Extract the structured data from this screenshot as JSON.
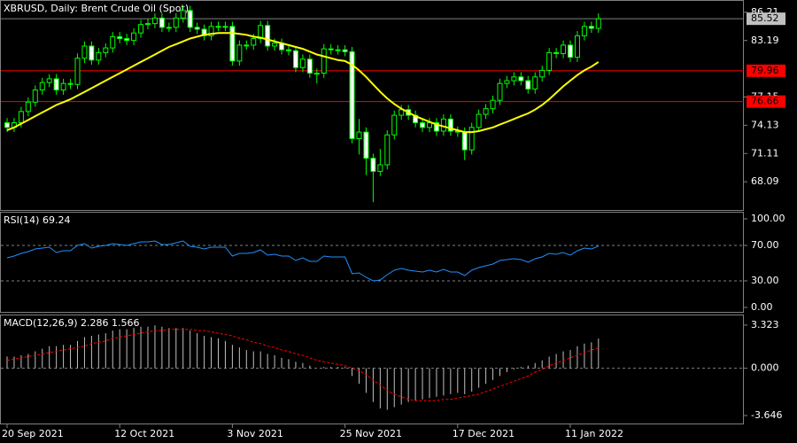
{
  "chart_data": [
    {
      "type": "candlestick",
      "title": "XBRUSD, Daily:  Brent Crude Oil (Spot)",
      "categories": [
        "20 Sep 2021",
        null,
        null,
        null,
        null,
        null,
        null,
        null,
        null,
        null,
        null,
        null,
        null,
        null,
        null,
        null,
        "12 Oct 2021",
        null,
        null,
        null,
        null,
        null,
        null,
        null,
        null,
        null,
        null,
        null,
        null,
        null,
        null,
        null,
        "3 Nov 2021",
        null,
        null,
        null,
        null,
        null,
        null,
        null,
        null,
        null,
        null,
        null,
        null,
        null,
        null,
        null,
        "25 Nov 2021",
        null,
        null,
        null,
        null,
        null,
        null,
        null,
        null,
        null,
        null,
        null,
        null,
        null,
        null,
        null,
        "17 Dec 2021",
        null,
        null,
        null,
        null,
        null,
        null,
        null,
        null,
        null,
        null,
        null,
        null,
        null,
        null,
        null,
        "11 Jan 2022",
        null,
        null,
        null,
        null
      ],
      "open": [
        74.4,
        73.9,
        74.4,
        75.6,
        76.6,
        77.9,
        78.7,
        79.1,
        77.9,
        78.6,
        78.5,
        81.3,
        82.6,
        81.1,
        81.9,
        82.4,
        83.6,
        83.4,
        83.2,
        84.0,
        84.9,
        85.0,
        85.6,
        84.6,
        84.6,
        85.6,
        86.4,
        84.6,
        84.4,
        83.7,
        84.7,
        84.7,
        84.7,
        81.0,
        82.7,
        82.7,
        83.4,
        84.8,
        82.6,
        82.9,
        82.2,
        82.1,
        80.3,
        81.2,
        79.7,
        79.7,
        82.3,
        82.2,
        82.2,
        82.0,
        72.7,
        73.4,
        70.6,
        69.2,
        69.9,
        73.1,
        75.2,
        75.8,
        75.2,
        74.4,
        73.9,
        74.4,
        73.5,
        74.8,
        73.5,
        73.4,
        71.5,
        73.9,
        75.3,
        75.9,
        76.8,
        78.6,
        78.9,
        79.3,
        78.9,
        78.0,
        79.3,
        80.0,
        81.9,
        81.8,
        82.7,
        81.4,
        83.7,
        84.7,
        84.5
      ],
      "high": [
        74.9,
        74.9,
        76.1,
        77.1,
        78.4,
        79.2,
        79.6,
        79.6,
        79.1,
        79.1,
        81.8,
        83.1,
        83.1,
        82.4,
        82.9,
        84.1,
        84.1,
        83.9,
        84.5,
        85.4,
        85.5,
        86.1,
        86.1,
        85.1,
        86.1,
        86.9,
        86.9,
        85.1,
        84.9,
        85.2,
        85.2,
        85.2,
        85.2,
        83.2,
        83.2,
        83.9,
        85.3,
        85.3,
        83.4,
        83.4,
        82.7,
        82.6,
        81.7,
        81.7,
        80.2,
        82.8,
        82.8,
        82.7,
        82.7,
        82.5,
        74.8,
        73.9,
        71.1,
        71.6,
        73.6,
        75.7,
        76.3,
        76.3,
        75.7,
        74.9,
        74.9,
        74.9,
        75.3,
        75.3,
        74.0,
        73.9,
        74.4,
        75.8,
        76.4,
        77.3,
        79.1,
        79.4,
        79.8,
        79.8,
        79.4,
        79.8,
        80.5,
        82.4,
        82.4,
        83.2,
        83.2,
        84.2,
        85.2,
        85.2,
        86.1
      ],
      "low": [
        73.4,
        73.4,
        73.9,
        75.1,
        76.1,
        77.4,
        78.2,
        77.4,
        77.4,
        78.0,
        78.0,
        80.8,
        80.6,
        80.6,
        81.4,
        81.9,
        82.9,
        82.7,
        82.7,
        83.5,
        84.4,
        84.5,
        84.1,
        84.1,
        84.1,
        85.1,
        84.1,
        83.9,
        83.2,
        83.2,
        84.2,
        84.2,
        80.5,
        80.5,
        82.2,
        82.2,
        82.9,
        82.1,
        82.1,
        81.7,
        81.6,
        79.8,
        79.8,
        79.2,
        78.6,
        79.2,
        81.7,
        81.7,
        81.5,
        72.2,
        71.0,
        68.8,
        65.9,
        68.7,
        69.4,
        72.6,
        74.7,
        74.7,
        73.9,
        73.4,
        73.4,
        73.0,
        73.0,
        73.0,
        72.9,
        70.4,
        71.0,
        73.4,
        74.8,
        75.4,
        76.3,
        78.1,
        78.4,
        78.4,
        77.5,
        77.5,
        78.8,
        79.5,
        81.3,
        81.3,
        80.9,
        80.9,
        83.2,
        84.0,
        84.0
      ],
      "close": [
        73.9,
        74.4,
        75.6,
        76.6,
        77.9,
        78.7,
        79.1,
        77.9,
        78.6,
        78.5,
        81.3,
        82.6,
        81.1,
        81.9,
        82.4,
        83.6,
        83.4,
        83.2,
        84.0,
        84.9,
        85.0,
        85.6,
        84.6,
        84.6,
        85.6,
        86.4,
        84.6,
        84.4,
        83.7,
        84.7,
        84.7,
        84.7,
        81.0,
        82.7,
        82.7,
        83.4,
        84.8,
        82.6,
        82.9,
        82.2,
        82.1,
        80.3,
        81.2,
        79.7,
        79.7,
        82.3,
        82.2,
        82.2,
        82.0,
        72.7,
        73.4,
        70.6,
        69.2,
        69.9,
        73.1,
        75.2,
        75.8,
        75.2,
        74.4,
        73.9,
        74.4,
        73.5,
        74.8,
        73.5,
        73.4,
        71.5,
        73.9,
        75.3,
        75.9,
        76.8,
        78.6,
        78.9,
        79.3,
        78.9,
        78.0,
        79.3,
        80.0,
        81.9,
        81.8,
        82.7,
        81.4,
        83.7,
        84.7,
        84.5,
        85.52
      ],
      "up_color": "#000000",
      "down_color": "#ffffff",
      "wick_color": "#00ff00",
      "ma": {
        "color": "#ffff00",
        "values": [
          73.6,
          73.9,
          74.3,
          74.7,
          75.1,
          75.5,
          75.9,
          76.3,
          76.6,
          76.9,
          77.3,
          77.7,
          78.1,
          78.5,
          78.9,
          79.3,
          79.7,
          80.1,
          80.5,
          80.9,
          81.3,
          81.7,
          82.1,
          82.5,
          82.8,
          83.1,
          83.4,
          83.6,
          83.8,
          83.9,
          84.0,
          84.0,
          84.0,
          83.9,
          83.8,
          83.6,
          83.5,
          83.3,
          83.1,
          82.9,
          82.7,
          82.5,
          82.3,
          82.0,
          81.7,
          81.5,
          81.3,
          81.1,
          81.0,
          80.6,
          80.0,
          79.3,
          78.5,
          77.7,
          77.0,
          76.4,
          75.9,
          75.5,
          75.1,
          74.8,
          74.5,
          74.2,
          74.0,
          73.8,
          73.6,
          73.4,
          73.4,
          73.5,
          73.7,
          73.9,
          74.2,
          74.5,
          74.8,
          75.1,
          75.4,
          75.8,
          76.3,
          76.9,
          77.6,
          78.3,
          78.9,
          79.5,
          80.0,
          80.4,
          80.9
        ]
      },
      "ylim": [
        65.07,
        87.43
      ],
      "yticks": [
        68.09,
        71.11,
        74.13,
        77.15,
        83.19,
        86.21
      ],
      "levels": [
        {
          "value": 79.96,
          "color": "#ff0000"
        },
        {
          "value": 76.66,
          "color": "#ff0000"
        }
      ],
      "last_price": {
        "value": 85.52,
        "color": "#c0c0c0"
      }
    },
    {
      "type": "line",
      "title": "RSI(14) 69.24",
      "values": [
        56,
        58,
        61,
        63,
        66,
        67,
        68,
        62,
        64,
        64,
        70,
        72,
        67,
        69,
        70,
        72,
        71,
        70,
        72,
        74,
        74,
        75,
        71,
        71,
        73,
        75,
        69,
        68,
        66,
        68,
        68,
        68,
        58,
        61,
        61,
        62,
        65,
        59,
        60,
        58,
        58,
        53,
        56,
        52,
        52,
        58,
        57,
        57,
        57,
        38,
        39,
        34,
        30,
        31,
        37,
        42,
        44,
        42,
        41,
        40,
        42,
        40,
        43,
        40,
        40,
        36,
        42,
        45,
        47,
        49,
        53,
        54,
        55,
        54,
        51,
        55,
        57,
        61,
        60,
        62,
        59,
        64,
        67,
        66,
        69.24
      ],
      "color": "#1e90ff",
      "ylim": [
        -5,
        107
      ],
      "yticks": [
        {
          "value": 100,
          "label": "100.00"
        },
        {
          "value": 70,
          "label": "70.00"
        },
        {
          "value": 30,
          "label": "30.00"
        },
        {
          "value": 0,
          "label": "0.00"
        }
      ],
      "levels": [
        70,
        30
      ]
    },
    {
      "type": "bar",
      "title": "MACD(12,26,9) 2.286 1.566",
      "series": [
        {
          "style": "histogram",
          "color": "#c0c0c0",
          "values": [
            0.9,
            0.9,
            1.0,
            1.1,
            1.3,
            1.5,
            1.7,
            1.7,
            1.8,
            1.8,
            2.1,
            2.4,
            2.5,
            2.6,
            2.7,
            2.9,
            3.0,
            3.0,
            3.1,
            3.2,
            3.2,
            3.3,
            3.2,
            3.1,
            3.1,
            3.1,
            2.9,
            2.7,
            2.5,
            2.4,
            2.3,
            2.1,
            1.8,
            1.6,
            1.4,
            1.3,
            1.3,
            1.1,
            1.0,
            0.8,
            0.7,
            0.5,
            0.4,
            0.2,
            0.0,
            0.1,
            0.1,
            0.1,
            0.1,
            -0.6,
            -1.2,
            -1.9,
            -2.6,
            -3.1,
            -3.2,
            -3.0,
            -2.8,
            -2.6,
            -2.5,
            -2.4,
            -2.3,
            -2.2,
            -2.1,
            -2.0,
            -1.9,
            -2.0,
            -1.8,
            -1.5,
            -1.2,
            -0.9,
            -0.6,
            -0.3,
            -0.1,
            0.1,
            0.2,
            0.4,
            0.6,
            0.9,
            1.1,
            1.3,
            1.4,
            1.7,
            1.9,
            2.0,
            2.286
          ]
        },
        {
          "style": "dashed",
          "color": "#ff0000",
          "values": [
            0.6,
            0.7,
            0.8,
            0.9,
            1.0,
            1.1,
            1.2,
            1.3,
            1.4,
            1.5,
            1.6,
            1.7,
            1.9,
            2.0,
            2.1,
            2.3,
            2.4,
            2.5,
            2.6,
            2.7,
            2.8,
            2.9,
            2.9,
            3.0,
            3.0,
            3.0,
            3.0,
            2.9,
            2.9,
            2.8,
            2.7,
            2.6,
            2.5,
            2.3,
            2.2,
            2.0,
            1.9,
            1.7,
            1.6,
            1.4,
            1.3,
            1.1,
            1.0,
            0.8,
            0.6,
            0.5,
            0.4,
            0.3,
            0.2,
            0.0,
            -0.2,
            -0.5,
            -0.9,
            -1.3,
            -1.7,
            -2.0,
            -2.2,
            -2.4,
            -2.5,
            -2.5,
            -2.5,
            -2.5,
            -2.4,
            -2.4,
            -2.3,
            -2.2,
            -2.1,
            -2.0,
            -1.8,
            -1.6,
            -1.4,
            -1.2,
            -1.0,
            -0.8,
            -0.6,
            -0.3,
            -0.1,
            0.2,
            0.4,
            0.6,
            0.8,
            1.0,
            1.2,
            1.4,
            1.566
          ]
        }
      ],
      "ylim": [
        -4.26,
        4.07
      ],
      "yticks": [
        3.323,
        {
          "value": 0,
          "label": "0.000"
        },
        -3.646
      ],
      "levels": [
        0
      ]
    }
  ]
}
